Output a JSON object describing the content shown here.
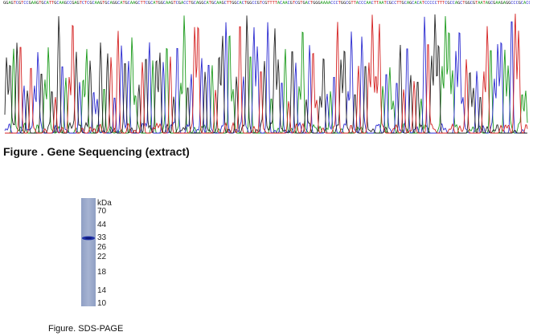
{
  "sequence": "GGAGTCGTCCGAAGTGCATTGCAAGCCGAGTCTCGCAAGTGCAGGCATGCAAGCTTCGCATGGCAAGTCGACCTGCAGGCATGCAAGCTTGGCACTGGCCGTCGTTTTACAACGTCGTGACTGGGAAAACCCTGGCGTTACCCAACTTAATCGCCTTGCAGCACATCCCCCTTTCGCCAGCTGGCGTAATAGCGAAGAGGCCCGCACCGATCGCCCTTCCCAACAGTTGCGCAGCCTGAATGGCGAATGG",
  "base_colors": {
    "A": "#1a9a1a",
    "C": "#2a2ad0",
    "G": "#222222",
    "T": "#d42020"
  },
  "figure1": {
    "caption": "Figure . Gene Sequencing (extract)"
  },
  "figure2": {
    "caption": "Figure. SDS-PAGE",
    "unit": "kDa",
    "markers": [
      "70",
      "44",
      "33",
      "26",
      "22",
      "18",
      "14",
      "10"
    ],
    "band_marker": "33"
  }
}
